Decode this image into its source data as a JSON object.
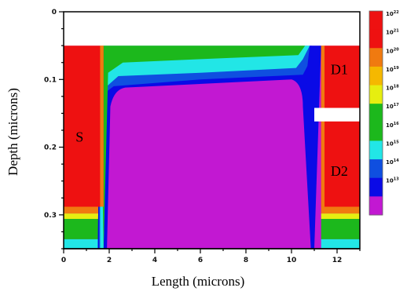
{
  "chart_data": {
    "type": "heatmap",
    "title": "",
    "xlabel": "Length (microns)",
    "ylabel": "Depth (microns)",
    "xlim": [
      0,
      13
    ],
    "ylim": [
      0.35,
      0
    ],
    "x_ticks": [
      {
        "value": 0,
        "label": "0"
      },
      {
        "value": 2,
        "label": "2"
      },
      {
        "value": 4,
        "label": "4"
      },
      {
        "value": 6,
        "label": "6"
      },
      {
        "value": 8,
        "label": "8"
      },
      {
        "value": 10,
        "label": "10"
      },
      {
        "value": 12,
        "label": "12"
      }
    ],
    "y_ticks": [
      {
        "value": 0,
        "label": "0"
      },
      {
        "value": 0.1,
        "label": "0.1"
      },
      {
        "value": 0.2,
        "label": "0.2"
      },
      {
        "value": 0.3,
        "label": "0.3"
      }
    ],
    "surface_depth": 0.05,
    "colorbar": {
      "unit_base": "10",
      "levels": [
        {
          "exponent": "22",
          "color": "#ee1111"
        },
        {
          "exponent": "21",
          "color": "#ee1111"
        },
        {
          "exponent": "20",
          "color": "#f07a10"
        },
        {
          "exponent": "19",
          "color": "#f5b800"
        },
        {
          "exponent": "18",
          "color": "#e6ee10"
        },
        {
          "exponent": "17",
          "color": "#1cb81c"
        },
        {
          "exponent": "16",
          "color": "#1cb81c"
        },
        {
          "exponent": "15",
          "color": "#22e6e6"
        },
        {
          "exponent": "14",
          "color": "#0f4fe0"
        },
        {
          "exponent": "13",
          "color": "#0a0ae6"
        },
        {
          "exponent": "",
          "color": "#c218d2"
        }
      ]
    },
    "regions": [
      {
        "label": "S",
        "x": 0.7,
        "y": 0.185
      },
      {
        "label": "D1",
        "x": 12.1,
        "y": 0.085
      },
      {
        "label": "D2",
        "x": 12.1,
        "y": 0.235
      }
    ],
    "colors": {
      "source_drain": "#ee1111",
      "substrate": "#c218d2",
      "green": "#1cb81c",
      "cyan": "#22e6e6",
      "blue": "#0a0ae6",
      "yellow": "#e6ee10",
      "orange": "#f07a10",
      "mid_blue": "#0f4fe0"
    }
  }
}
